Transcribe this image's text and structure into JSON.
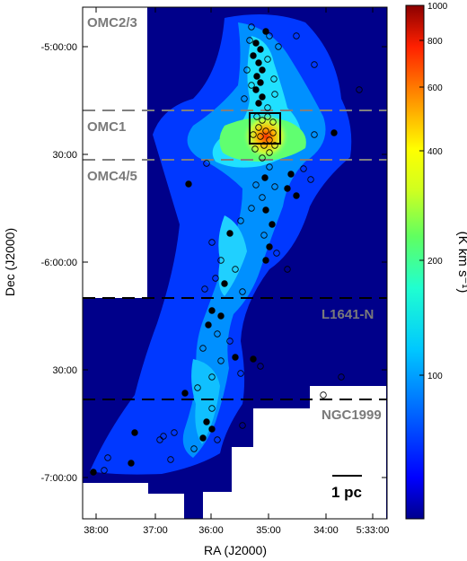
{
  "map": {
    "region_labels": [
      "OMC2/3",
      "OMC1",
      "OMC4/5",
      "L1641-N",
      "NGC1999"
    ],
    "scale_bar_label": "1 pc",
    "x_axis_label": "RA (J2000)",
    "y_axis_label": "Dec (J2000)",
    "x_ticks": [
      "38:00",
      "37:00",
      "36:00",
      "35:00",
      "34:00",
      "5:33:00"
    ],
    "y_ticks": [
      "-5:00:00",
      "30:00",
      "-6:00:00",
      "30:00",
      "-7:00:00"
    ]
  },
  "colorbar": {
    "label": "(K km s⁻¹)",
    "ticks": [
      "1000",
      "800",
      "600",
      "400",
      "200",
      "100"
    ],
    "colors": [
      "#00008c",
      "#0000ff",
      "#0080ff",
      "#00e0ff",
      "#40ff80",
      "#c0ff20",
      "#ffff00",
      "#ff9000",
      "#ff2000",
      "#8b0000"
    ]
  }
}
